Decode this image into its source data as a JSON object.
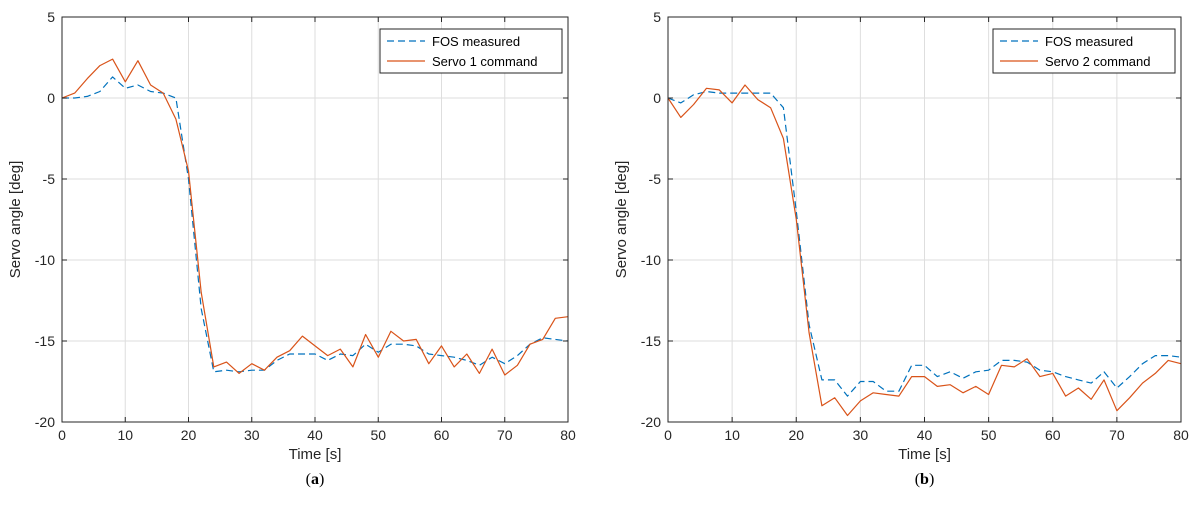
{
  "chart_data": [
    {
      "type": "line",
      "caption": "(a)",
      "xlabel": "Time [s]",
      "ylabel": "Servo angle [deg]",
      "xlim": [
        0,
        80
      ],
      "ylim": [
        -20,
        5
      ],
      "xticks": [
        0,
        10,
        20,
        30,
        40,
        50,
        60,
        70,
        80
      ],
      "yticks": [
        5,
        0,
        -5,
        -10,
        -15,
        -20
      ],
      "grid": true,
      "legend_position": "top-right",
      "series": [
        {
          "name": "FOS measured",
          "color": "#0072BD",
          "style": "dashed",
          "x": [
            0,
            2,
            4,
            6,
            8,
            10,
            12,
            14,
            16,
            18,
            20,
            22,
            24,
            26,
            28,
            30,
            32,
            34,
            36,
            38,
            40,
            42,
            44,
            46,
            48,
            50,
            52,
            54,
            56,
            58,
            60,
            62,
            64,
            66,
            68,
            70,
            72,
            74,
            76,
            78,
            80
          ],
          "y": [
            0,
            0,
            0.1,
            0.4,
            1.3,
            0.6,
            0.8,
            0.4,
            0.3,
            0,
            -5,
            -13,
            -16.9,
            -16.8,
            -16.9,
            -16.8,
            -16.8,
            -16.2,
            -15.8,
            -15.8,
            -15.8,
            -16.2,
            -15.8,
            -15.9,
            -15.2,
            -15.7,
            -15.2,
            -15.2,
            -15.3,
            -15.8,
            -15.9,
            -16,
            -16.2,
            -16.5,
            -16,
            -16.4,
            -15.9,
            -15.2,
            -14.8,
            -14.9,
            -15
          ]
        },
        {
          "name": "Servo 1 command",
          "color": "#D95319",
          "style": "solid",
          "x": [
            0,
            2,
            4,
            6,
            8,
            10,
            12,
            14,
            16,
            18,
            20,
            22,
            24,
            26,
            28,
            30,
            32,
            34,
            36,
            38,
            40,
            42,
            44,
            46,
            48,
            50,
            52,
            54,
            56,
            58,
            60,
            62,
            64,
            66,
            68,
            70,
            72,
            74,
            76,
            78,
            80
          ],
          "y": [
            0,
            0.3,
            1.2,
            2,
            2.4,
            1,
            2.3,
            0.8,
            0.3,
            -1.3,
            -4.5,
            -12,
            -16.6,
            -16.3,
            -17,
            -16.4,
            -16.8,
            -16,
            -15.6,
            -14.7,
            -15.3,
            -15.9,
            -15.5,
            -16.6,
            -14.6,
            -16,
            -14.4,
            -15,
            -14.9,
            -16.4,
            -15.3,
            -16.6,
            -15.8,
            -17,
            -15.5,
            -17.1,
            -16.5,
            -15.2,
            -14.9,
            -13.6,
            -13.5
          ]
        }
      ]
    },
    {
      "type": "line",
      "caption": "(b)",
      "xlabel": "Time [s]",
      "ylabel": "Servo angle [deg]",
      "xlim": [
        0,
        80
      ],
      "ylim": [
        -20,
        5
      ],
      "xticks": [
        0,
        10,
        20,
        30,
        40,
        50,
        60,
        70,
        80
      ],
      "yticks": [
        5,
        0,
        -5,
        -10,
        -15,
        -20
      ],
      "grid": true,
      "legend_position": "top-right",
      "series": [
        {
          "name": "FOS measured",
          "color": "#0072BD",
          "style": "dashed",
          "x": [
            0,
            2,
            4,
            6,
            8,
            10,
            12,
            14,
            16,
            18,
            20,
            22,
            24,
            26,
            28,
            30,
            32,
            34,
            36,
            38,
            40,
            42,
            44,
            46,
            48,
            50,
            52,
            54,
            56,
            58,
            60,
            62,
            64,
            66,
            68,
            70,
            72,
            74,
            76,
            78,
            80
          ],
          "y": [
            0,
            -0.3,
            0.2,
            0.4,
            0.3,
            0.3,
            0.3,
            0.3,
            0.3,
            -0.6,
            -7,
            -14,
            -17.4,
            -17.4,
            -18.4,
            -17.5,
            -17.5,
            -18.1,
            -18.1,
            -16.5,
            -16.5,
            -17.2,
            -16.9,
            -17.3,
            -16.9,
            -16.8,
            -16.2,
            -16.2,
            -16.3,
            -16.8,
            -16.9,
            -17.2,
            -17.4,
            -17.6,
            -16.9,
            -17.9,
            -17.2,
            -16.4,
            -15.9,
            -15.9,
            -16
          ]
        },
        {
          "name": "Servo 2 command",
          "color": "#D95319",
          "style": "solid",
          "x": [
            0,
            2,
            4,
            6,
            8,
            10,
            12,
            14,
            16,
            18,
            20,
            22,
            24,
            26,
            28,
            30,
            32,
            34,
            36,
            38,
            40,
            42,
            44,
            46,
            48,
            50,
            52,
            54,
            56,
            58,
            60,
            62,
            64,
            66,
            68,
            70,
            72,
            74,
            76,
            78,
            80
          ],
          "y": [
            0,
            -1.2,
            -0.4,
            0.6,
            0.5,
            -0.3,
            0.8,
            -0.1,
            -0.6,
            -2.5,
            -7.5,
            -14.5,
            -19,
            -18.5,
            -19.6,
            -18.7,
            -18.2,
            -18.3,
            -18.4,
            -17.2,
            -17.2,
            -17.8,
            -17.7,
            -18.2,
            -17.8,
            -18.3,
            -16.5,
            -16.6,
            -16.1,
            -17.2,
            -17,
            -18.4,
            -17.9,
            -18.6,
            -17.4,
            -19.3,
            -18.5,
            -17.6,
            -17,
            -16.2,
            -16.4
          ]
        }
      ]
    }
  ]
}
